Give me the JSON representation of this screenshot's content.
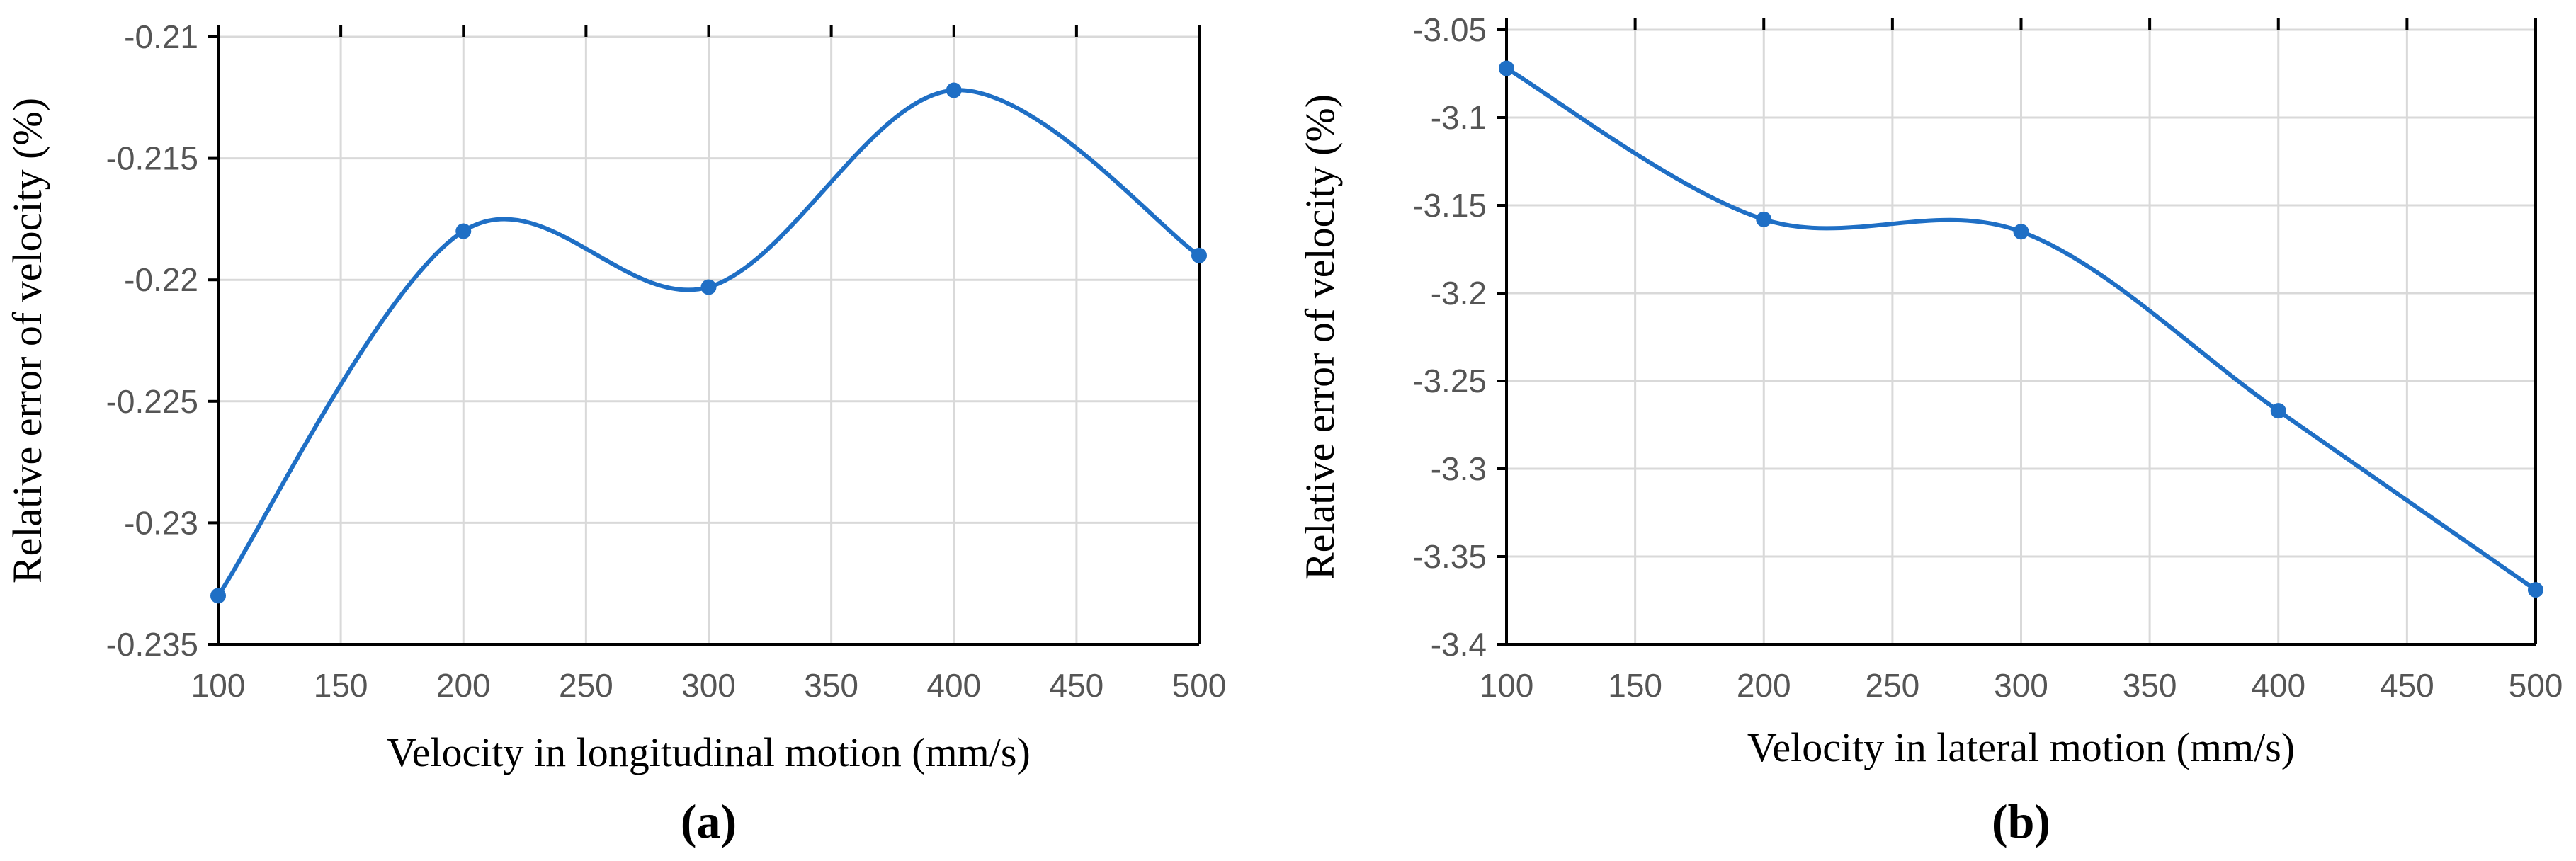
{
  "chart_data": [
    {
      "type": "line",
      "panel_label": "(a)",
      "xlabel": "Velocity in longitudinal motion (mm/s)",
      "ylabel": "Relative error of velocity (%)",
      "x": [
        100,
        200,
        300,
        400,
        500
      ],
      "series": [
        {
          "name": "Relative error",
          "values": [
            -0.233,
            -0.218,
            -0.2203,
            -0.2122,
            -0.219
          ]
        }
      ],
      "xlim": [
        100,
        500
      ],
      "ylim": [
        -0.235,
        -0.21
      ],
      "xticks": [
        100,
        150,
        200,
        250,
        300,
        350,
        400,
        450,
        500
      ],
      "xtick_labels": [
        "100",
        "150",
        "200",
        "250",
        "300",
        "350",
        "400",
        "450",
        "500"
      ],
      "yticks": [
        -0.235,
        -0.23,
        -0.225,
        -0.22,
        -0.215,
        -0.21
      ],
      "ytick_labels": [
        "-0.235",
        "-0.23",
        "-0.225",
        "-0.22",
        "-0.215",
        "-0.21"
      ],
      "grid": true,
      "smooth": true,
      "color": "#1f6fc5"
    },
    {
      "type": "line",
      "panel_label": "(b)",
      "xlabel": "Velocity in lateral motion (mm/s)",
      "ylabel": "Relative error of velocity (%)",
      "x": [
        100,
        200,
        300,
        400,
        500
      ],
      "series": [
        {
          "name": "Relative error",
          "values": [
            -3.072,
            -3.158,
            -3.165,
            -3.267,
            -3.369
          ]
        }
      ],
      "xlim": [
        100,
        500
      ],
      "ylim": [
        -3.4,
        -3.05
      ],
      "xticks": [
        100,
        150,
        200,
        250,
        300,
        350,
        400,
        450,
        500
      ],
      "xtick_labels": [
        "100",
        "150",
        "200",
        "250",
        "300",
        "350",
        "400",
        "450",
        "500"
      ],
      "yticks": [
        -3.4,
        -3.35,
        -3.3,
        -3.25,
        -3.2,
        -3.15,
        -3.1,
        -3.05
      ],
      "ytick_labels": [
        "-3.4",
        "-3.35",
        "-3.3",
        "-3.25",
        "-3.2",
        "-3.15",
        "-3.1",
        "-3.05"
      ],
      "grid": true,
      "smooth": true,
      "color": "#1f6fc5"
    }
  ]
}
